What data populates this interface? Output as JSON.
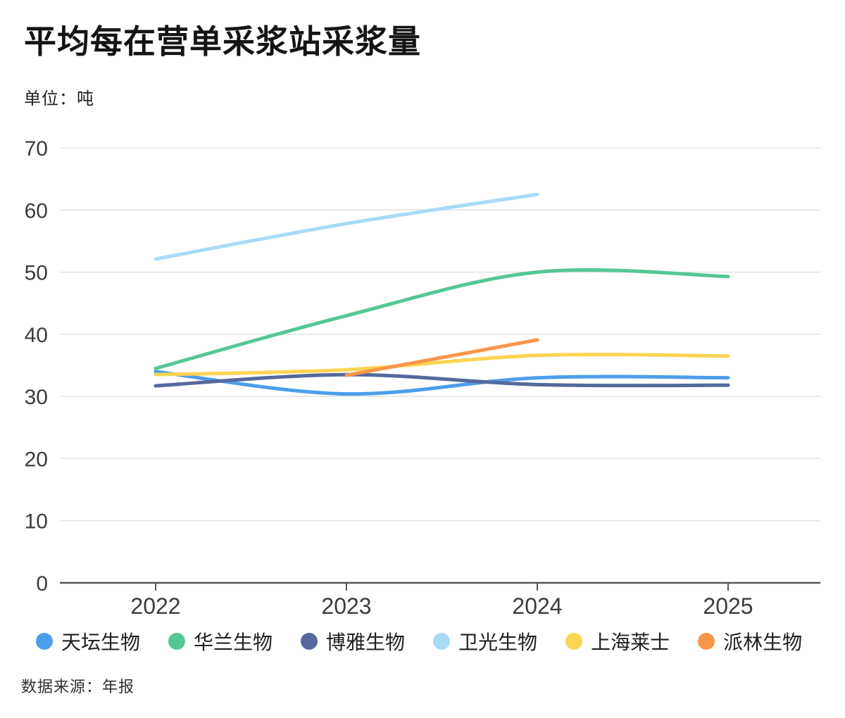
{
  "chart_data": {
    "type": "line",
    "title": "平均每在营单采浆站采浆量",
    "unit_label": "单位：吨",
    "source_label": "数据来源：年报",
    "x_ticks": [
      "2022",
      "2023",
      "2024",
      "2025"
    ],
    "y_ticks": [
      0,
      10,
      20,
      30,
      40,
      50,
      60,
      70
    ],
    "ylim": [
      0,
      70
    ],
    "xlim": [
      2022,
      2025
    ],
    "grid": true,
    "legend_position": "bottom",
    "smooth": true,
    "series": [
      {
        "id": "tiantan-bio",
        "name": "天坛生物",
        "color": "#4D9EEA",
        "x": [
          2022,
          2023,
          2024,
          2025
        ],
        "values": [
          34.0,
          30.4,
          33.0,
          33.0
        ]
      },
      {
        "id": "hualan-bio",
        "name": "华兰生物",
        "color": "#55C795",
        "x": [
          2022,
          2023,
          2024,
          2025
        ],
        "values": [
          34.5,
          43.0,
          50.0,
          49.3
        ]
      },
      {
        "id": "boya-bio",
        "name": "博雅生物",
        "color": "#55699B",
        "x": [
          2022,
          2023,
          2024,
          2025
        ],
        "values": [
          31.7,
          33.5,
          31.9,
          31.8
        ]
      },
      {
        "id": "weiguang-bio",
        "name": "卫光生物",
        "color": "#A9DAF8",
        "x": [
          2022,
          2023,
          2024
        ],
        "values": [
          52.1,
          57.8,
          62.5
        ]
      },
      {
        "id": "shanghai-raas",
        "name": "上海莱士",
        "color": "#FAD553",
        "x": [
          2022,
          2023,
          2024,
          2025
        ],
        "values": [
          33.5,
          34.3,
          36.6,
          36.5
        ]
      },
      {
        "id": "palin-bio",
        "name": "派林生物",
        "color": "#F9954A",
        "x": [
          2023,
          2024
        ],
        "values": [
          33.4,
          39.1
        ]
      }
    ],
    "style": {
      "grid_color": "#E3E3E3",
      "axis_color": "#55565A",
      "tick_label_color": "#3C3C3C",
      "line_width": 5
    }
  }
}
